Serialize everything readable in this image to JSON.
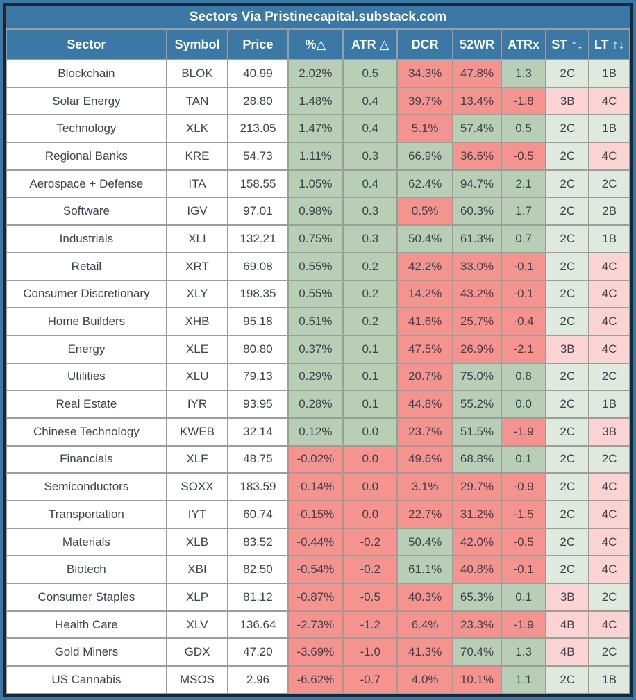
{
  "title": "Sectors Via Pristinecapital.substack.com",
  "colors": {
    "header_bg": "#3b78a5",
    "outer_frame": "#3b78a5",
    "inner_border": "#1a2733",
    "grid_line": "#9d9d9d",
    "positive_green": "#b9cfb5",
    "negative_red": "#f5938f",
    "rating_pale_green": "#dfe9dd",
    "rating_pale_pink": "#fbd3d2",
    "text_dark": "#3b4353",
    "text_header": "#ffffff"
  },
  "chart_data": {
    "type": "table",
    "title": "Sectors Via Pristinecapital.substack.com",
    "columns": [
      "Sector",
      "Symbol",
      "Price",
      "%△",
      "ATR △",
      "DCR",
      "52WR",
      "ATRx",
      "ST ↑↓",
      "LT ↑↓"
    ],
    "rows": [
      {
        "sector": "Blockchain",
        "symbol": "BLOK",
        "price": "40.99",
        "cells": [
          {
            "v": "2.02%",
            "c": "green"
          },
          {
            "v": "0.5",
            "c": "green"
          },
          {
            "v": "34.3%",
            "c": "red"
          },
          {
            "v": "47.8%",
            "c": "red"
          },
          {
            "v": "1.3",
            "c": "green"
          },
          {
            "v": "2C",
            "c": "pale_green"
          },
          {
            "v": "1B",
            "c": "pale_green"
          }
        ]
      },
      {
        "sector": "Solar Energy",
        "symbol": "TAN",
        "price": "28.80",
        "cells": [
          {
            "v": "1.48%",
            "c": "green"
          },
          {
            "v": "0.4",
            "c": "green"
          },
          {
            "v": "39.7%",
            "c": "red"
          },
          {
            "v": "13.4%",
            "c": "red"
          },
          {
            "v": "-1.8",
            "c": "red"
          },
          {
            "v": "3B",
            "c": "pale_pink"
          },
          {
            "v": "4C",
            "c": "pale_pink"
          }
        ]
      },
      {
        "sector": "Technology",
        "symbol": "XLK",
        "price": "213.05",
        "cells": [
          {
            "v": "1.47%",
            "c": "green"
          },
          {
            "v": "0.4",
            "c": "green"
          },
          {
            "v": "5.1%",
            "c": "red"
          },
          {
            "v": "57.4%",
            "c": "green"
          },
          {
            "v": "0.5",
            "c": "green"
          },
          {
            "v": "2C",
            "c": "pale_green"
          },
          {
            "v": "1B",
            "c": "pale_green"
          }
        ]
      },
      {
        "sector": "Regional Banks",
        "symbol": "KRE",
        "price": "54.73",
        "cells": [
          {
            "v": "1.11%",
            "c": "green"
          },
          {
            "v": "0.3",
            "c": "green"
          },
          {
            "v": "66.9%",
            "c": "green"
          },
          {
            "v": "36.6%",
            "c": "red"
          },
          {
            "v": "-0.5",
            "c": "red"
          },
          {
            "v": "2C",
            "c": "pale_green"
          },
          {
            "v": "4C",
            "c": "pale_pink"
          }
        ]
      },
      {
        "sector": "Aerospace + Defense",
        "symbol": "ITA",
        "price": "158.55",
        "cells": [
          {
            "v": "1.05%",
            "c": "green"
          },
          {
            "v": "0.4",
            "c": "green"
          },
          {
            "v": "62.4%",
            "c": "green"
          },
          {
            "v": "94.7%",
            "c": "green"
          },
          {
            "v": "2.1",
            "c": "green"
          },
          {
            "v": "2C",
            "c": "pale_green"
          },
          {
            "v": "2C",
            "c": "pale_green"
          }
        ]
      },
      {
        "sector": "Software",
        "symbol": "IGV",
        "price": "97.01",
        "cells": [
          {
            "v": "0.98%",
            "c": "green"
          },
          {
            "v": "0.3",
            "c": "green"
          },
          {
            "v": "0.5%",
            "c": "red"
          },
          {
            "v": "60.3%",
            "c": "green"
          },
          {
            "v": "1.7",
            "c": "green"
          },
          {
            "v": "2C",
            "c": "pale_green"
          },
          {
            "v": "2B",
            "c": "pale_green"
          }
        ]
      },
      {
        "sector": "Industrials",
        "symbol": "XLI",
        "price": "132.21",
        "cells": [
          {
            "v": "0.75%",
            "c": "green"
          },
          {
            "v": "0.3",
            "c": "green"
          },
          {
            "v": "50.4%",
            "c": "green"
          },
          {
            "v": "61.3%",
            "c": "green"
          },
          {
            "v": "0.7",
            "c": "green"
          },
          {
            "v": "2C",
            "c": "pale_green"
          },
          {
            "v": "1B",
            "c": "pale_green"
          }
        ]
      },
      {
        "sector": "Retail",
        "symbol": "XRT",
        "price": "69.08",
        "cells": [
          {
            "v": "0.55%",
            "c": "green"
          },
          {
            "v": "0.2",
            "c": "green"
          },
          {
            "v": "42.2%",
            "c": "red"
          },
          {
            "v": "33.0%",
            "c": "red"
          },
          {
            "v": "-0.1",
            "c": "red"
          },
          {
            "v": "2C",
            "c": "pale_green"
          },
          {
            "v": "4C",
            "c": "pale_pink"
          }
        ]
      },
      {
        "sector": "Consumer Discretionary",
        "symbol": "XLY",
        "price": "198.35",
        "cells": [
          {
            "v": "0.55%",
            "c": "green"
          },
          {
            "v": "0.2",
            "c": "green"
          },
          {
            "v": "14.2%",
            "c": "red"
          },
          {
            "v": "43.2%",
            "c": "red"
          },
          {
            "v": "-0.1",
            "c": "red"
          },
          {
            "v": "2C",
            "c": "pale_green"
          },
          {
            "v": "4C",
            "c": "pale_pink"
          }
        ]
      },
      {
        "sector": "Home Builders",
        "symbol": "XHB",
        "price": "95.18",
        "cells": [
          {
            "v": "0.51%",
            "c": "green"
          },
          {
            "v": "0.2",
            "c": "green"
          },
          {
            "v": "41.6%",
            "c": "red"
          },
          {
            "v": "25.7%",
            "c": "red"
          },
          {
            "v": "-0.4",
            "c": "red"
          },
          {
            "v": "2C",
            "c": "pale_green"
          },
          {
            "v": "4C",
            "c": "pale_pink"
          }
        ]
      },
      {
        "sector": "Energy",
        "symbol": "XLE",
        "price": "80.80",
        "cells": [
          {
            "v": "0.37%",
            "c": "green"
          },
          {
            "v": "0.1",
            "c": "green"
          },
          {
            "v": "47.5%",
            "c": "red"
          },
          {
            "v": "26.9%",
            "c": "red"
          },
          {
            "v": "-2.1",
            "c": "red"
          },
          {
            "v": "3B",
            "c": "pale_pink"
          },
          {
            "v": "4C",
            "c": "pale_pink"
          }
        ]
      },
      {
        "sector": "Utilities",
        "symbol": "XLU",
        "price": "79.13",
        "cells": [
          {
            "v": "0.29%",
            "c": "green"
          },
          {
            "v": "0.1",
            "c": "green"
          },
          {
            "v": "20.7%",
            "c": "red"
          },
          {
            "v": "75.0%",
            "c": "green"
          },
          {
            "v": "0.8",
            "c": "green"
          },
          {
            "v": "2C",
            "c": "pale_green"
          },
          {
            "v": "2C",
            "c": "pale_green"
          }
        ]
      },
      {
        "sector": "Real Estate",
        "symbol": "IYR",
        "price": "93.95",
        "cells": [
          {
            "v": "0.28%",
            "c": "green"
          },
          {
            "v": "0.1",
            "c": "green"
          },
          {
            "v": "44.8%",
            "c": "red"
          },
          {
            "v": "55.2%",
            "c": "green"
          },
          {
            "v": "0.0",
            "c": "green"
          },
          {
            "v": "2C",
            "c": "pale_green"
          },
          {
            "v": "1B",
            "c": "pale_green"
          }
        ]
      },
      {
        "sector": "Chinese Technology",
        "symbol": "KWEB",
        "price": "32.14",
        "cells": [
          {
            "v": "0.12%",
            "c": "green"
          },
          {
            "v": "0.0",
            "c": "green"
          },
          {
            "v": "23.7%",
            "c": "red"
          },
          {
            "v": "51.5%",
            "c": "green"
          },
          {
            "v": "-1.9",
            "c": "red"
          },
          {
            "v": "2C",
            "c": "pale_green"
          },
          {
            "v": "3B",
            "c": "pale_pink"
          }
        ]
      },
      {
        "sector": "Financials",
        "symbol": "XLF",
        "price": "48.75",
        "cells": [
          {
            "v": "-0.02%",
            "c": "red"
          },
          {
            "v": "0.0",
            "c": "red"
          },
          {
            "v": "49.6%",
            "c": "red"
          },
          {
            "v": "68.8%",
            "c": "green"
          },
          {
            "v": "0.1",
            "c": "green"
          },
          {
            "v": "2C",
            "c": "pale_green"
          },
          {
            "v": "2C",
            "c": "pale_green"
          }
        ]
      },
      {
        "sector": "Semiconductors",
        "symbol": "SOXX",
        "price": "183.59",
        "cells": [
          {
            "v": "-0.14%",
            "c": "red"
          },
          {
            "v": "0.0",
            "c": "red"
          },
          {
            "v": "3.1%",
            "c": "red"
          },
          {
            "v": "29.7%",
            "c": "red"
          },
          {
            "v": "-0.9",
            "c": "red"
          },
          {
            "v": "2C",
            "c": "pale_green"
          },
          {
            "v": "4C",
            "c": "pale_pink"
          }
        ]
      },
      {
        "sector": "Transportation",
        "symbol": "IYT",
        "price": "60.74",
        "cells": [
          {
            "v": "-0.15%",
            "c": "red"
          },
          {
            "v": "0.0",
            "c": "red"
          },
          {
            "v": "22.7%",
            "c": "red"
          },
          {
            "v": "31.2%",
            "c": "red"
          },
          {
            "v": "-1.5",
            "c": "red"
          },
          {
            "v": "2C",
            "c": "pale_green"
          },
          {
            "v": "4C",
            "c": "pale_pink"
          }
        ]
      },
      {
        "sector": "Materials",
        "symbol": "XLB",
        "price": "83.52",
        "cells": [
          {
            "v": "-0.44%",
            "c": "red"
          },
          {
            "v": "-0.2",
            "c": "red"
          },
          {
            "v": "50.4%",
            "c": "green"
          },
          {
            "v": "42.0%",
            "c": "red"
          },
          {
            "v": "-0.5",
            "c": "red"
          },
          {
            "v": "2C",
            "c": "pale_green"
          },
          {
            "v": "4C",
            "c": "pale_pink"
          }
        ]
      },
      {
        "sector": "Biotech",
        "symbol": "XBI",
        "price": "82.50",
        "cells": [
          {
            "v": "-0.54%",
            "c": "red"
          },
          {
            "v": "-0.2",
            "c": "red"
          },
          {
            "v": "61.1%",
            "c": "green"
          },
          {
            "v": "40.8%",
            "c": "red"
          },
          {
            "v": "-0.1",
            "c": "red"
          },
          {
            "v": "2C",
            "c": "pale_green"
          },
          {
            "v": "4C",
            "c": "pale_pink"
          }
        ]
      },
      {
        "sector": "Consumer Staples",
        "symbol": "XLP",
        "price": "81.12",
        "cells": [
          {
            "v": "-0.87%",
            "c": "red"
          },
          {
            "v": "-0.5",
            "c": "red"
          },
          {
            "v": "40.3%",
            "c": "red"
          },
          {
            "v": "65.3%",
            "c": "green"
          },
          {
            "v": "0.1",
            "c": "green"
          },
          {
            "v": "3B",
            "c": "pale_pink"
          },
          {
            "v": "2C",
            "c": "pale_green"
          }
        ]
      },
      {
        "sector": "Health Care",
        "symbol": "XLV",
        "price": "136.64",
        "cells": [
          {
            "v": "-2.73%",
            "c": "red"
          },
          {
            "v": "-1.2",
            "c": "red"
          },
          {
            "v": "6.4%",
            "c": "red"
          },
          {
            "v": "23.3%",
            "c": "red"
          },
          {
            "v": "-1.9",
            "c": "red"
          },
          {
            "v": "4B",
            "c": "pale_pink"
          },
          {
            "v": "4C",
            "c": "pale_pink"
          }
        ]
      },
      {
        "sector": "Gold Miners",
        "symbol": "GDX",
        "price": "47.20",
        "cells": [
          {
            "v": "-3.69%",
            "c": "red"
          },
          {
            "v": "-1.0",
            "c": "red"
          },
          {
            "v": "41.3%",
            "c": "red"
          },
          {
            "v": "70.4%",
            "c": "green"
          },
          {
            "v": "1.3",
            "c": "green"
          },
          {
            "v": "4B",
            "c": "pale_pink"
          },
          {
            "v": "2C",
            "c": "pale_green"
          }
        ]
      },
      {
        "sector": "US Cannabis",
        "symbol": "MSOS",
        "price": "2.96",
        "cells": [
          {
            "v": "-6.62%",
            "c": "red"
          },
          {
            "v": "-0.7",
            "c": "red"
          },
          {
            "v": "4.0%",
            "c": "red"
          },
          {
            "v": "10.1%",
            "c": "red"
          },
          {
            "v": "1.1",
            "c": "green"
          },
          {
            "v": "2C",
            "c": "pale_green"
          },
          {
            "v": "1B",
            "c": "pale_green"
          }
        ]
      }
    ]
  }
}
